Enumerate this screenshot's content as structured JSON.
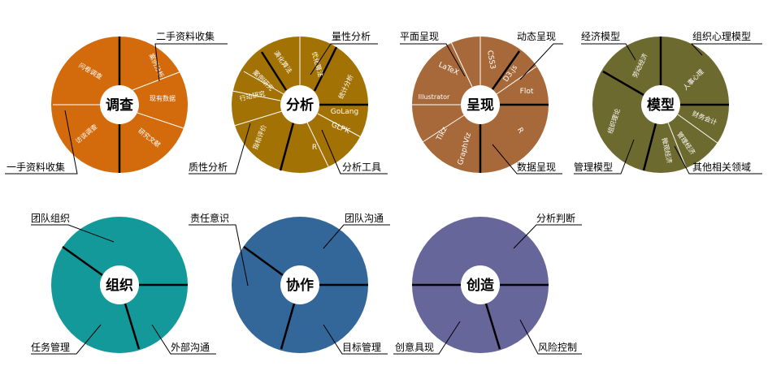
{
  "colors": {
    "orange": "#D36A0C",
    "olive_gold": "#A37204",
    "brown": "#A7693A",
    "olive": "#6D6A30",
    "teal": "#13999A",
    "blue": "#336699",
    "purple": "#66669A"
  },
  "wheels": [
    {
      "center": "调查",
      "inner": [
        "问卷调查",
        "案例分析",
        "现有数据",
        "研究文献",
        "访谈调查"
      ],
      "labels": [
        "二手资料收集",
        "一手资料收集"
      ]
    },
    {
      "center": "分析",
      "inner": [
        "优化算法",
        "统计分析",
        "GoLang",
        "GLPK",
        "R",
        "指标评价",
        "行动研究",
        "案例研究",
        "演化算法"
      ],
      "labels": [
        "量性分析",
        "分析工具",
        "质性分析"
      ]
    },
    {
      "center": "呈现",
      "inner": [
        "LaTeX",
        "CSS3",
        "D3.js",
        "Flot",
        "R",
        "GraphViz",
        "Tikz",
        "Illustrator"
      ],
      "labels": [
        "平面呈现",
        "动态呈现",
        "数据呈现"
      ]
    },
    {
      "center": "模型",
      "inner": [
        "劳动经济",
        "人事心理",
        "财务会计",
        "管理经济",
        "微观经济",
        "组织理论"
      ],
      "labels": [
        "经济模型",
        "组织心理模型",
        "其他相关领域",
        "管理模型"
      ]
    },
    {
      "center": "组织",
      "labels": [
        "团队组织",
        "任务管理",
        "外部沟通"
      ]
    },
    {
      "center": "协作",
      "labels": [
        "责任意识",
        "团队沟通",
        "目标管理"
      ]
    },
    {
      "center": "创造",
      "labels": [
        "分析判断",
        "创意具现",
        "风险控制"
      ]
    }
  ]
}
